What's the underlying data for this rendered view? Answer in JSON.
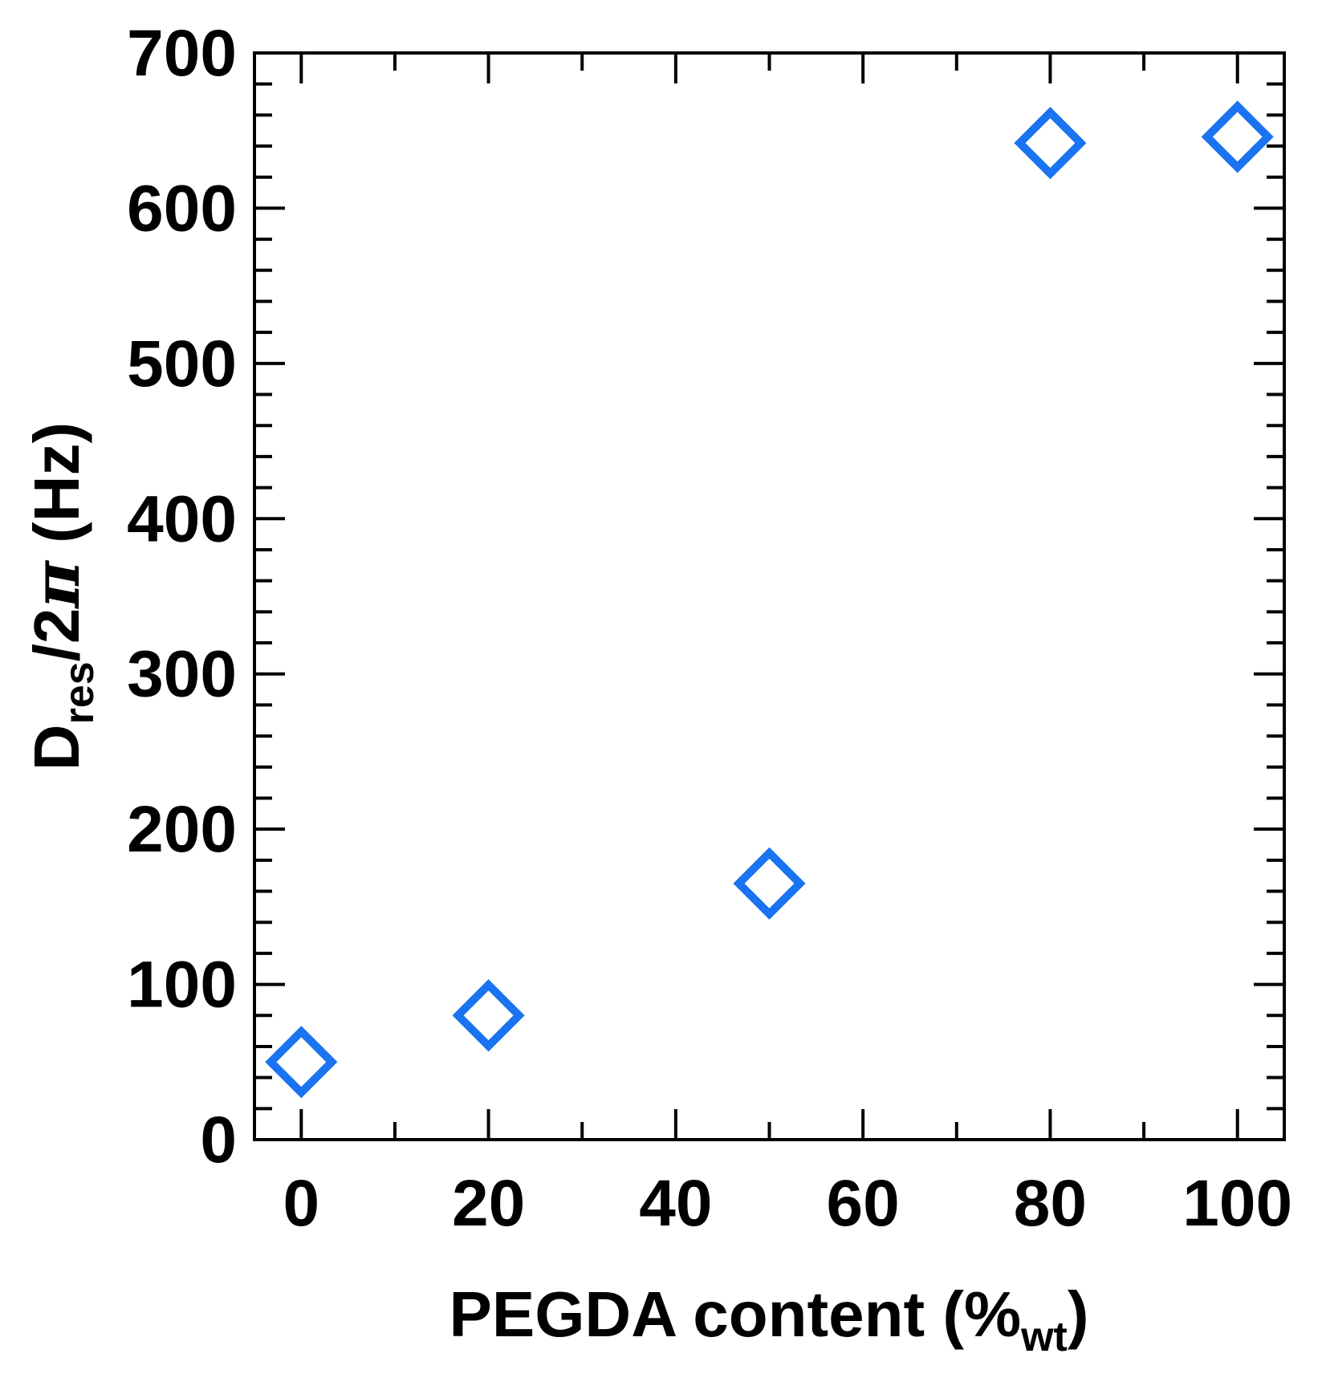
{
  "chart_data": {
    "type": "scatter",
    "xlabel": {
      "main": "PEGDA content (%",
      "sub": "wt",
      "close": ")"
    },
    "ylabel": {
      "main": "D",
      "sub": "res",
      "rest": "/2",
      "symbol": "π",
      "unit": " (Hz)"
    },
    "xlim": [
      -5,
      105
    ],
    "ylim": [
      0,
      700
    ],
    "xticks": [
      0,
      20,
      40,
      60,
      80,
      100
    ],
    "yticks": [
      0,
      100,
      200,
      300,
      400,
      500,
      600,
      700
    ],
    "grid": false,
    "series": [
      {
        "marker": "open-diamond",
        "color": "#1a73f0",
        "points": [
          {
            "x": 0,
            "y": 50
          },
          {
            "x": 20,
            "y": 80
          },
          {
            "x": 50,
            "y": 165
          },
          {
            "x": 80,
            "y": 642
          },
          {
            "x": 100,
            "y": 646
          }
        ]
      }
    ]
  }
}
